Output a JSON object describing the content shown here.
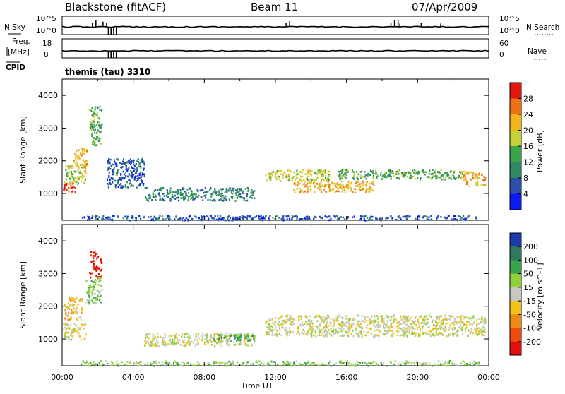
{
  "header": {
    "station": "Blackstone (fitACF)",
    "beam": "Beam 11",
    "date": "07/Apr/2009",
    "program": "themis (tau) 3310"
  },
  "strip_labels": {
    "nsky": "N.Sky",
    "nsky_ticks": [
      "10^5",
      "10^0"
    ],
    "nsearch": "N.Search",
    "nsearch_ticks": [
      "10^5",
      "10^0"
    ],
    "freq_label_1": "Freq.",
    "freq_label_2": "[MHz]",
    "cpid": "CPID",
    "freq_ticks": [
      "18",
      "8"
    ],
    "nave": "Nave",
    "nave_ticks": [
      "60",
      "0"
    ]
  },
  "chart_data": [
    {
      "type": "heatmap",
      "name": "power",
      "ylabel": "Slant Range [km]",
      "xlabel": "",
      "xlim": [
        "00:00",
        "24:00"
      ],
      "ylim": [
        180,
        4500
      ],
      "yticks": [
        "1000",
        "2000",
        "3000",
        "4000"
      ],
      "colorbar": {
        "label": "Power [dB]",
        "ticks": [
          "4",
          "8",
          "12",
          "16",
          "20",
          "24",
          "28"
        ],
        "colors": [
          "#0a1cf0",
          "#2b4fa8",
          "#2f8a63",
          "#3aa34c",
          "#c8d13a",
          "#f3b41a",
          "#f07014",
          "#e0180f"
        ]
      },
      "regions": [
        {
          "t0": 0.05,
          "t1": 0.7,
          "r0": 1050,
          "r1": 1400,
          "class": 7
        },
        {
          "t0": 0.1,
          "t1": 1.3,
          "r0": 1300,
          "r1": 1900,
          "class": 4
        },
        {
          "t0": 0.6,
          "t1": 1.4,
          "r0": 1800,
          "r1": 2400,
          "class": 5
        },
        {
          "t0": 1.5,
          "t1": 2.2,
          "r0": 2500,
          "r1": 3700,
          "class": 3
        },
        {
          "t0": 2.5,
          "t1": 4.6,
          "r0": 1200,
          "r1": 2100,
          "class": 1
        },
        {
          "t0": 4.6,
          "t1": 10.8,
          "r0": 800,
          "r1": 1200,
          "class": 2
        },
        {
          "t0": 11.4,
          "t1": 15.0,
          "r0": 1400,
          "r1": 1750,
          "class": 4
        },
        {
          "t0": 13.0,
          "t1": 17.5,
          "r0": 1050,
          "r1": 1400,
          "class": 5
        },
        {
          "t0": 15.5,
          "t1": 22.5,
          "r0": 1450,
          "r1": 1750,
          "class": 3
        },
        {
          "t0": 22.5,
          "t1": 23.8,
          "r0": 1250,
          "r1": 1700,
          "class": 5
        },
        {
          "t0": 1.0,
          "t1": 23.5,
          "r0": 200,
          "r1": 350,
          "class": 1
        }
      ]
    },
    {
      "type": "heatmap",
      "name": "velocity",
      "ylabel": "Slant Range [km]",
      "xlabel": "Time UT",
      "xlim": [
        "00:00",
        "24:00"
      ],
      "ylim": [
        180,
        4500
      ],
      "xticks": [
        "00:00",
        "04:00",
        "08:00",
        "12:00",
        "16:00",
        "20:00",
        "00:00"
      ],
      "yticks": [
        "1000",
        "2000",
        "3000",
        "4000"
      ],
      "colorbar": {
        "label": "Velocity [m s^-1]",
        "ticks": [
          "200",
          "100",
          "50",
          "15",
          "-15",
          "-50",
          "-100",
          "-200"
        ],
        "colors": [
          "#1c3aa8",
          "#2f7a5c",
          "#3aa34c",
          "#8fd23a",
          "#c8c8c0",
          "#f3c21a",
          "#f08a14",
          "#f04a10",
          "#e0100c"
        ]
      },
      "regions": [
        {
          "t0": 0.05,
          "t1": 1.3,
          "r0": 1000,
          "r1": 1500,
          "class": 4
        },
        {
          "t0": 0.1,
          "t1": 1.1,
          "r0": 1600,
          "r1": 2300,
          "class": 5
        },
        {
          "t0": 1.5,
          "t1": 2.2,
          "r0": 2900,
          "r1": 3700,
          "class": 8
        },
        {
          "t0": 1.3,
          "t1": 2.2,
          "r0": 2100,
          "r1": 2900,
          "class": 3
        },
        {
          "t0": 4.6,
          "t1": 10.8,
          "r0": 800,
          "r1": 1200,
          "class": 4
        },
        {
          "t0": 8.5,
          "t1": 10.8,
          "r0": 950,
          "r1": 1150,
          "class": 2
        },
        {
          "t0": 11.4,
          "t1": 23.8,
          "r0": 1100,
          "r1": 1750,
          "class": 4
        },
        {
          "t0": 1.0,
          "t1": 23.5,
          "r0": 200,
          "r1": 350,
          "class": 3
        }
      ]
    }
  ]
}
